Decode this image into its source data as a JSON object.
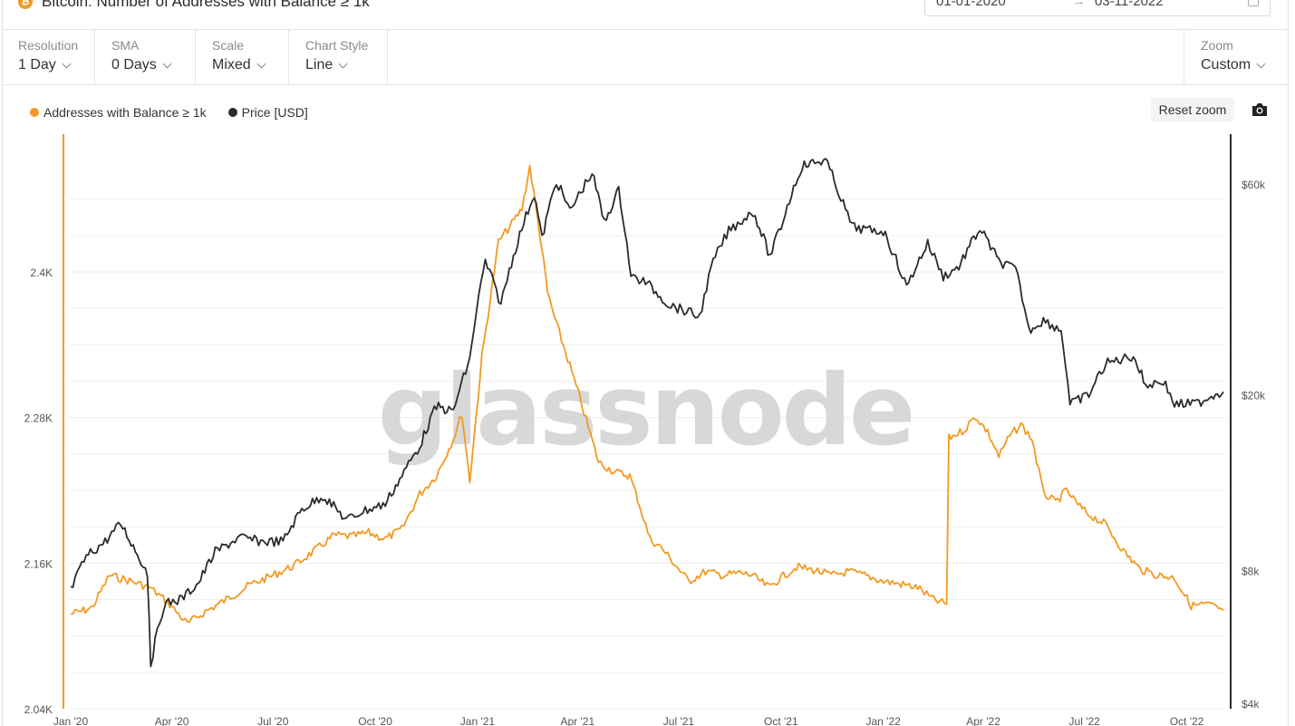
{
  "header": {
    "title": "Bitcoin: Number of Addresses with Balance ≥ 1k",
    "icon": "bitcoin-icon",
    "date_from": "01-01-2020",
    "date_to": "03-11-2022"
  },
  "controls": {
    "resolution": {
      "label": "Resolution",
      "value": "1 Day"
    },
    "sma": {
      "label": "SMA",
      "value": "0 Days"
    },
    "scale": {
      "label": "Scale",
      "value": "Mixed"
    },
    "chart_style": {
      "label": "Chart Style",
      "value": "Line"
    },
    "zoom": {
      "label": "Zoom",
      "value": "Custom"
    }
  },
  "toolbar": {
    "reset_zoom": "Reset zoom",
    "screenshot_icon": "camera-icon"
  },
  "watermark": "glassnode",
  "colors": {
    "addresses": "#f29a21",
    "price": "#2b2b2b",
    "grid": "#ececec"
  },
  "chart_data": {
    "type": "line",
    "title": "Bitcoin: Number of Addresses with Balance ≥ 1k",
    "x_ticks": [
      "Jan '20",
      "Apr '20",
      "Jul '20",
      "Oct '20",
      "Jan '21",
      "Apr '21",
      "Jul '21",
      "Oct '21",
      "Jan '22",
      "Apr '22",
      "Jul '22",
      "Oct '22"
    ],
    "x_tick_dates": [
      "2020-01-01",
      "2020-04-01",
      "2020-07-01",
      "2020-10-01",
      "2021-01-01",
      "2021-04-01",
      "2021-07-01",
      "2021-10-01",
      "2022-01-01",
      "2022-04-01",
      "2022-07-01",
      "2022-10-01"
    ],
    "x_range": [
      "2020-01-01",
      "2022-11-03"
    ],
    "y_left": {
      "ticks": [
        2040,
        2160,
        2280,
        2400
      ],
      "tick_labels": [
        "2.04K",
        "2.16K",
        "2.28K",
        "2.4K"
      ],
      "range": [
        2040,
        2400
      ]
    },
    "y_right": {
      "scale": "log",
      "ticks": [
        4000,
        8000,
        20000,
        60000
      ],
      "tick_labels": [
        "$4k",
        "$8k",
        "$20k",
        "$60k"
      ],
      "range": [
        4000,
        60000
      ]
    },
    "legend_position": "top-left",
    "grid": true,
    "series": [
      {
        "name": "Addresses with Balance ≥ 1k",
        "axis": "left",
        "color": "#f29a21",
        "points": [
          [
            "2020-01-01",
            2118
          ],
          [
            "2020-01-20",
            2123
          ],
          [
            "2020-02-05",
            2150
          ],
          [
            "2020-02-25",
            2145
          ],
          [
            "2020-03-12",
            2140
          ],
          [
            "2020-03-28",
            2128
          ],
          [
            "2020-04-15",
            2110
          ],
          [
            "2020-05-01",
            2120
          ],
          [
            "2020-05-20",
            2130
          ],
          [
            "2020-06-10",
            2142
          ],
          [
            "2020-07-01",
            2150
          ],
          [
            "2020-07-20",
            2158
          ],
          [
            "2020-08-10",
            2172
          ],
          [
            "2020-08-25",
            2183
          ],
          [
            "2020-09-10",
            2182
          ],
          [
            "2020-09-25",
            2185
          ],
          [
            "2020-10-10",
            2180
          ],
          [
            "2020-10-25",
            2188
          ],
          [
            "2020-11-10",
            2217
          ],
          [
            "2020-11-25",
            2232
          ],
          [
            "2020-12-10",
            2262
          ],
          [
            "2020-12-18",
            2283
          ],
          [
            "2020-12-25",
            2228
          ],
          [
            "2021-01-05",
            2330
          ],
          [
            "2021-01-20",
            2425
          ],
          [
            "2021-02-01",
            2440
          ],
          [
            "2021-02-10",
            2452
          ],
          [
            "2021-02-17",
            2487
          ],
          [
            "2021-02-26",
            2432
          ],
          [
            "2021-03-05",
            2383
          ],
          [
            "2021-03-12",
            2360
          ],
          [
            "2021-03-25",
            2323
          ],
          [
            "2021-04-05",
            2290
          ],
          [
            "2021-04-20",
            2243
          ],
          [
            "2021-05-05",
            2235
          ],
          [
            "2021-05-18",
            2232
          ],
          [
            "2021-05-25",
            2213
          ],
          [
            "2021-06-05",
            2180
          ],
          [
            "2021-06-15",
            2173
          ],
          [
            "2021-06-25",
            2162
          ],
          [
            "2021-07-10",
            2145
          ],
          [
            "2021-07-25",
            2153
          ],
          [
            "2021-08-10",
            2150
          ],
          [
            "2021-08-25",
            2152
          ],
          [
            "2021-09-05",
            2150
          ],
          [
            "2021-09-20",
            2140
          ],
          [
            "2021-10-01",
            2148
          ],
          [
            "2021-10-15",
            2157
          ],
          [
            "2021-11-01",
            2154
          ],
          [
            "2021-11-15",
            2150
          ],
          [
            "2021-12-01",
            2153
          ],
          [
            "2021-12-15",
            2150
          ],
          [
            "2022-01-01",
            2145
          ],
          [
            "2022-01-15",
            2143
          ],
          [
            "2022-02-01",
            2140
          ],
          [
            "2022-02-15",
            2130
          ],
          [
            "2022-02-27",
            2126
          ],
          [
            "2022-03-01",
            2263
          ],
          [
            "2022-03-15",
            2270
          ],
          [
            "2022-03-25",
            2281
          ],
          [
            "2022-04-05",
            2268
          ],
          [
            "2022-04-15",
            2248
          ],
          [
            "2022-04-25",
            2265
          ],
          [
            "2022-05-05",
            2274
          ],
          [
            "2022-05-15",
            2262
          ],
          [
            "2022-05-25",
            2218
          ],
          [
            "2022-06-05",
            2210
          ],
          [
            "2022-06-15",
            2220
          ],
          [
            "2022-06-25",
            2208
          ],
          [
            "2022-07-05",
            2200
          ],
          [
            "2022-07-20",
            2192
          ],
          [
            "2022-08-05",
            2170
          ],
          [
            "2022-08-20",
            2155
          ],
          [
            "2022-09-05",
            2150
          ],
          [
            "2022-09-20",
            2148
          ],
          [
            "2022-10-05",
            2125
          ],
          [
            "2022-10-20",
            2126
          ],
          [
            "2022-11-03",
            2121
          ]
        ]
      },
      {
        "name": "Price [USD]",
        "axis": "right",
        "color": "#2b2b2b",
        "points": [
          [
            "2020-01-01",
            7200
          ],
          [
            "2020-01-15",
            8600
          ],
          [
            "2020-02-01",
            9300
          ],
          [
            "2020-02-15",
            10200
          ],
          [
            "2020-03-01",
            8700
          ],
          [
            "2020-03-10",
            7900
          ],
          [
            "2020-03-13",
            4900
          ],
          [
            "2020-03-25",
            6700
          ],
          [
            "2020-04-10",
            6900
          ],
          [
            "2020-04-25",
            7500
          ],
          [
            "2020-05-10",
            8800
          ],
          [
            "2020-06-01",
            9500
          ],
          [
            "2020-06-20",
            9300
          ],
          [
            "2020-07-10",
            9300
          ],
          [
            "2020-07-27",
            11000
          ],
          [
            "2020-08-15",
            11800
          ],
          [
            "2020-09-05",
            10400
          ],
          [
            "2020-09-20",
            10900
          ],
          [
            "2020-10-10",
            11300
          ],
          [
            "2020-10-25",
            13100
          ],
          [
            "2020-11-10",
            15300
          ],
          [
            "2020-11-25",
            18800
          ],
          [
            "2020-12-10",
            18300
          ],
          [
            "2020-12-25",
            24000
          ],
          [
            "2021-01-08",
            40000
          ],
          [
            "2021-01-22",
            32000
          ],
          [
            "2021-02-08",
            46000
          ],
          [
            "2021-02-21",
            57000
          ],
          [
            "2021-02-28",
            45000
          ],
          [
            "2021-03-13",
            61000
          ],
          [
            "2021-03-25",
            52000
          ],
          [
            "2021-04-14",
            63500
          ],
          [
            "2021-04-25",
            49000
          ],
          [
            "2021-05-08",
            58000
          ],
          [
            "2021-05-19",
            37000
          ],
          [
            "2021-06-01",
            36000
          ],
          [
            "2021-06-22",
            32000
          ],
          [
            "2021-07-20",
            30000
          ],
          [
            "2021-08-01",
            40000
          ],
          [
            "2021-08-15",
            47000
          ],
          [
            "2021-09-06",
            52000
          ],
          [
            "2021-09-21",
            41000
          ],
          [
            "2021-10-01",
            48000
          ],
          [
            "2021-10-20",
            66000
          ],
          [
            "2021-11-10",
            68000
          ],
          [
            "2021-11-26",
            54000
          ],
          [
            "2021-12-04",
            48000
          ],
          [
            "2021-12-20",
            47000
          ],
          [
            "2022-01-01",
            47000
          ],
          [
            "2022-01-22",
            35000
          ],
          [
            "2022-02-10",
            44000
          ],
          [
            "2022-02-24",
            37000
          ],
          [
            "2022-03-10",
            39000
          ],
          [
            "2022-03-29",
            47500
          ],
          [
            "2022-04-15",
            40000
          ],
          [
            "2022-04-30",
            38500
          ],
          [
            "2022-05-12",
            28000
          ],
          [
            "2022-05-25",
            29500
          ],
          [
            "2022-06-10",
            28000
          ],
          [
            "2022-06-18",
            19000
          ],
          [
            "2022-07-05",
            20000
          ],
          [
            "2022-07-20",
            23500
          ],
          [
            "2022-08-14",
            24500
          ],
          [
            "2022-08-25",
            21000
          ],
          [
            "2022-09-10",
            21500
          ],
          [
            "2022-09-20",
            19000
          ],
          [
            "2022-10-10",
            19100
          ],
          [
            "2022-10-25",
            20000
          ],
          [
            "2022-11-03",
            20300
          ]
        ]
      }
    ]
  }
}
